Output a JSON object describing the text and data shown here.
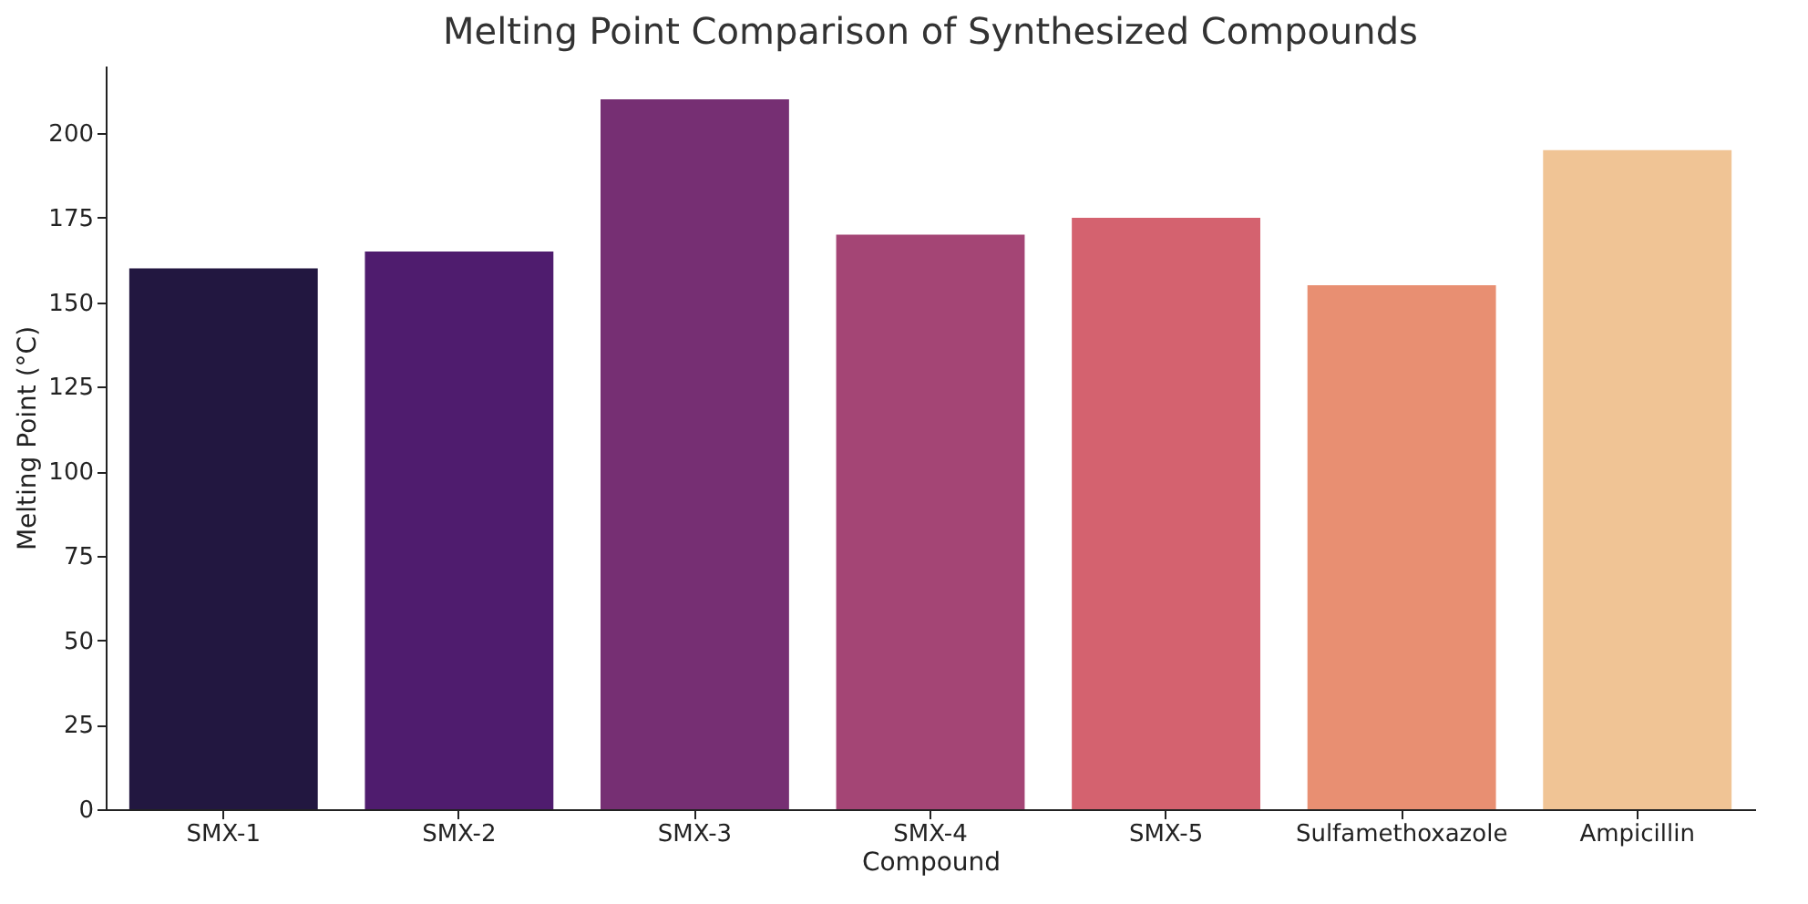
{
  "chart_data": {
    "type": "bar",
    "title": "Melting Point Comparison of Synthesized Compounds",
    "xlabel": "Compound",
    "ylabel": "Melting Point (°C)",
    "categories": [
      "SMX-1",
      "SMX-2",
      "SMX-3",
      "SMX-4",
      "SMX-5",
      "Sulfamethoxazole",
      "Ampicillin"
    ],
    "values": [
      160,
      165,
      210,
      170,
      175,
      155,
      195
    ],
    "colors": [
      "#221740",
      "#4f1c6e",
      "#762f73",
      "#a44575",
      "#d4626f",
      "#e88f72",
      "#f0c495"
    ],
    "ylim": [
      0,
      220
    ],
    "yticks": [
      0,
      25,
      50,
      75,
      100,
      125,
      150,
      175,
      200
    ],
    "grid": false
  }
}
